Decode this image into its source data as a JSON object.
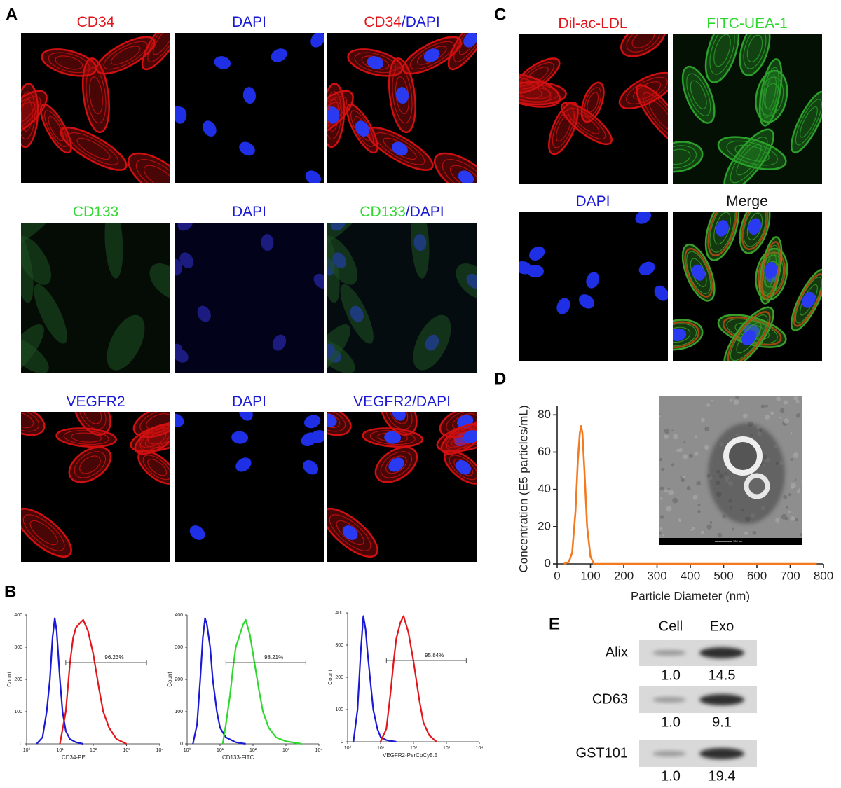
{
  "figure_labels": [
    "A",
    "B",
    "C",
    "D",
    "E"
  ],
  "panel_a": {
    "rows": [
      [
        [
          {
            "text": "CD34",
            "color": "#e3161c"
          }
        ],
        [
          {
            "text": "DAPI",
            "color": "#1a1ad6"
          }
        ],
        [
          {
            "text": "CD34",
            "color": "#e3161c"
          },
          {
            "text": "/DAPI",
            "color": "#1a1ad6"
          }
        ]
      ],
      [
        [
          {
            "text": "CD133",
            "color": "#2ed82e"
          }
        ],
        [
          {
            "text": "DAPI",
            "color": "#1a1ad6"
          }
        ],
        [
          {
            "text": "CD133",
            "color": "#2ed82e"
          },
          {
            "text": "/DAPI",
            "color": "#1a1ad6"
          }
        ]
      ],
      [
        [
          {
            "text": "VEGFR2",
            "color": "#1a1ad6"
          }
        ],
        [
          {
            "text": "DAPI",
            "color": "#1a1ad6"
          }
        ],
        [
          {
            "text": "VEGFR2/DAPI",
            "color": "#1a1ad6"
          }
        ]
      ]
    ]
  },
  "panel_c": {
    "images": [
      [
        {
          "text": "Dil-ac-LDL",
          "color": "#e3161c"
        }
      ],
      [
        {
          "text": "FITC-UEA-1",
          "color": "#2ed82e"
        }
      ],
      [
        {
          "text": "DAPI",
          "color": "#1a1ad6"
        }
      ],
      [
        {
          "text": "Merge",
          "color": "#111111"
        }
      ]
    ]
  },
  "panel_e": {
    "columns": [
      "Cell",
      "Exo"
    ],
    "rows": [
      {
        "name": "Alix",
        "values": [
          "1.0",
          "14.5"
        ]
      },
      {
        "name": "CD63",
        "values": [
          "1.0",
          "9.1"
        ]
      },
      {
        "name": "GST101",
        "values": [
          "1.0",
          "19.4"
        ]
      }
    ]
  },
  "chart_data": [
    {
      "type": "line",
      "ylabel": "Count",
      "xlabel": "CD34-PE",
      "log_x": true,
      "xlim": [
        1,
        10000
      ],
      "xticks": [
        {
          "value": 1,
          "label": "10⁰"
        },
        {
          "value": 10,
          "label": "10¹"
        },
        {
          "value": 100,
          "label": "10²"
        },
        {
          "value": 1000,
          "label": "10³"
        },
        {
          "value": 10000,
          "label": "10⁴"
        }
      ],
      "ylim": [
        0,
        400
      ],
      "yticks": [
        0,
        100,
        200,
        300,
        400
      ],
      "gate": [
        15,
        4000
      ],
      "gate_label": "96.23%",
      "series": [
        {
          "color": "#1a1ad6",
          "x": [
            2,
            3,
            4,
            5,
            6,
            7,
            8,
            10,
            12,
            15,
            20,
            30,
            50
          ],
          "values": [
            0,
            20,
            100,
            200,
            330,
            390,
            350,
            200,
            100,
            40,
            15,
            5,
            0
          ]
        },
        {
          "color": "#e3161c",
          "x": [
            10,
            15,
            20,
            25,
            30,
            40,
            50,
            70,
            100,
            150,
            200,
            300,
            500,
            1000
          ],
          "values": [
            0,
            100,
            250,
            330,
            360,
            375,
            385,
            350,
            280,
            170,
            100,
            50,
            15,
            0
          ]
        }
      ]
    },
    {
      "type": "line",
      "ylabel": "Count",
      "xlabel": "CD133-FITC",
      "log_x": true,
      "xlim": [
        1,
        10000
      ],
      "xticks": [
        {
          "value": 1,
          "label": "10⁰"
        },
        {
          "value": 10,
          "label": "10¹"
        },
        {
          "value": 100,
          "label": "10²"
        },
        {
          "value": 1000,
          "label": "10³"
        },
        {
          "value": 10000,
          "label": "10⁴"
        }
      ],
      "ylim": [
        0,
        400
      ],
      "yticks": [
        0,
        100,
        200,
        300,
        400
      ],
      "gate": [
        15,
        4000
      ],
      "gate_label": "98.21%",
      "series": [
        {
          "color": "#1a1ad6",
          "x": [
            1.5,
            2,
            2.5,
            3,
            3.5,
            4,
            5,
            6,
            8,
            10,
            15,
            30,
            60
          ],
          "values": [
            0,
            60,
            200,
            330,
            390,
            370,
            300,
            200,
            100,
            50,
            20,
            5,
            0
          ]
        },
        {
          "color": "#2ed82e",
          "x": [
            12,
            15,
            20,
            25,
            30,
            40,
            50,
            60,
            80,
            100,
            150,
            200,
            300,
            500,
            1000,
            3000
          ],
          "values": [
            0,
            60,
            150,
            240,
            300,
            340,
            370,
            385,
            340,
            280,
            170,
            100,
            50,
            20,
            8,
            0
          ]
        }
      ]
    },
    {
      "type": "line",
      "ylabel": "Count",
      "xlabel": "VEGFR2-PerCpCy5.5",
      "log_x": true,
      "xlim": [
        1,
        10000
      ],
      "xticks": [
        {
          "value": 1,
          "label": "10⁰"
        },
        {
          "value": 10,
          "label": "10¹"
        },
        {
          "value": 100,
          "label": "10²"
        },
        {
          "value": 1000,
          "label": "10³"
        },
        {
          "value": 10000,
          "label": "10⁴"
        }
      ],
      "ylim": [
        0,
        400
      ],
      "yticks": [
        0,
        100,
        200,
        300,
        400
      ],
      "gate": [
        15,
        4000
      ],
      "gate_label": "95.84%",
      "series": [
        {
          "color": "#1a1ad6",
          "x": [
            1.5,
            2,
            2.5,
            3,
            3.5,
            4,
            5,
            6,
            8,
            10,
            15,
            30
          ],
          "values": [
            0,
            100,
            280,
            390,
            350,
            280,
            180,
            100,
            40,
            15,
            5,
            0
          ]
        },
        {
          "color": "#e3161c",
          "x": [
            10,
            15,
            20,
            25,
            30,
            40,
            50,
            70,
            100,
            150,
            200,
            300,
            500
          ],
          "values": [
            0,
            40,
            150,
            250,
            320,
            370,
            390,
            340,
            250,
            130,
            60,
            20,
            0
          ]
        }
      ]
    },
    {
      "type": "line",
      "xlabel": "Particle Diameter (nm)",
      "ylabel": "Concentration (E5 particles/mL)",
      "xlim": [
        0,
        800
      ],
      "xticks": [
        0,
        100,
        200,
        300,
        400,
        500,
        600,
        700,
        800
      ],
      "ylim": [
        0,
        85
      ],
      "yticks": [
        0,
        20,
        40,
        60,
        80
      ],
      "inset_scale_label": "100 nm",
      "series": [
        {
          "color": "#f47a20",
          "x": [
            20,
            35,
            45,
            55,
            62,
            68,
            72,
            76,
            82,
            90,
            100,
            110,
            200,
            400,
            600,
            780
          ],
          "values": [
            0,
            1,
            6,
            28,
            55,
            70,
            74,
            70,
            50,
            20,
            4,
            0,
            0,
            0,
            0,
            0
          ]
        }
      ]
    }
  ]
}
